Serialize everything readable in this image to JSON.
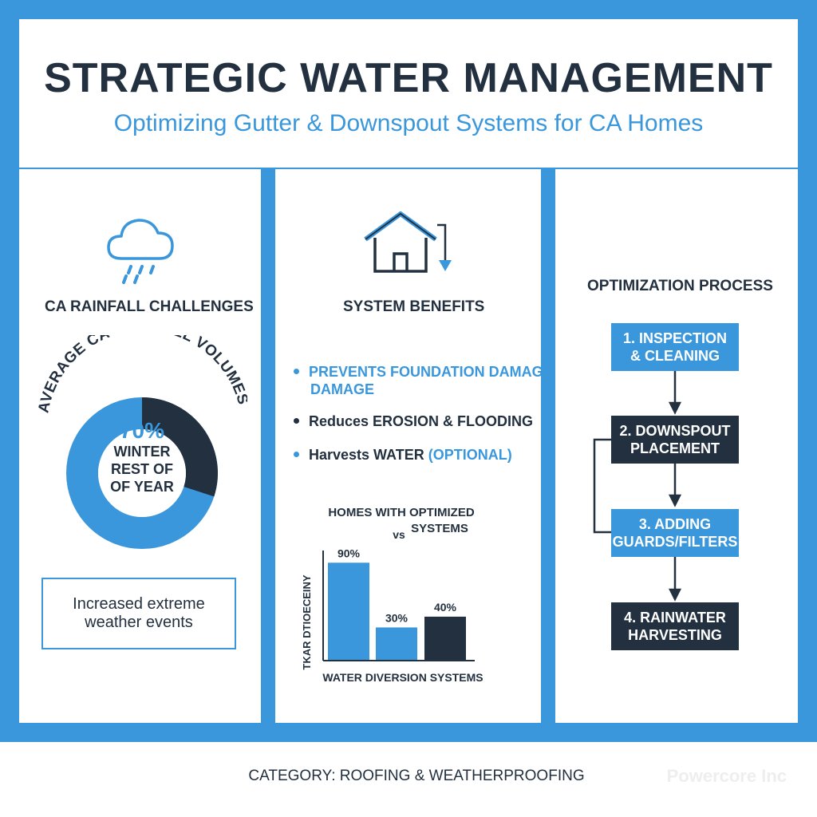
{
  "header": {
    "title": "STRATEGIC WATER MANAGEMENT",
    "subtitle": "Optimizing Gutter & Downspout Systems for CA Homes"
  },
  "rainfall": {
    "icon": "rain-cloud-icon",
    "heading": "CA RAINFALL CHALLENGES",
    "arc_label": "AVERAGE CA RAINFALL VOLUMES",
    "donut": {
      "winter_percent": 70,
      "percent_label": "70%",
      "winter_label": "WINTER",
      "rest_label_1": "REST OF",
      "rest_label_2": "OF YEAR"
    },
    "note_line1": "Increased extreme",
    "note_line2": "weather events"
  },
  "benefits": {
    "icon": "house-downspout-icon",
    "heading": "SYSTEM BENEFITS",
    "items": [
      {
        "line1": "PREVENTS FOUNDATION DAMAGE",
        "line2": "DAMAGE"
      },
      {
        "line1": "Reduces EROSION & FLOODING"
      },
      {
        "line1": "Harvests WATER ",
        "emph": "(OPTIONAL)"
      }
    ]
  },
  "chart_data": {
    "type": "bar",
    "title_line1": "HOMES WITH OPTIMIZED",
    "title_vs": "vs",
    "title_line2": "SYSTEMS",
    "ylabel": "TKAR DTIOECEINY",
    "xlabel": "WATER DIVERSION SYSTEMS",
    "ylim": [
      0,
      100
    ],
    "values": [
      90,
      30,
      40
    ],
    "labels": [
      "90%",
      "30%",
      "40%"
    ],
    "colors": [
      "#3a97dc",
      "#3a97dc",
      "#23303f"
    ]
  },
  "process": {
    "heading": "OPTIMIZATION PROCESS",
    "steps": [
      {
        "line1": "1. INSPECTION",
        "line2": "& CLEANING"
      },
      {
        "line1": "2. DOWNSPOUT",
        "line2": "PLACEMENT"
      },
      {
        "line1": "3. ADDING",
        "line2": "GUARDS/FILTERS"
      },
      {
        "line1": "4. RAINWATER",
        "line2": "HARVESTING"
      }
    ]
  },
  "footer": {
    "category": "CATEGORY: ROOFING & WEATHERPROOFING",
    "brand": "Powercore Inc"
  },
  "colors": {
    "accent": "#3a97dc",
    "dark": "#23303f"
  }
}
